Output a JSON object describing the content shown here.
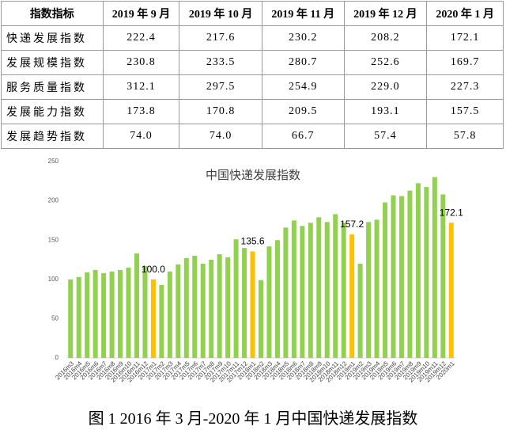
{
  "table": {
    "header": [
      "指数指标",
      "2019 年 9 月",
      "2019 年 10 月",
      "2019 年 11 月",
      "2019 年 12 月",
      "2020 年 1 月"
    ],
    "rows": [
      [
        "快递发展指数",
        "222.4",
        "217.6",
        "230.2",
        "208.2",
        "172.1"
      ],
      [
        "发展规模指数",
        "230.8",
        "233.5",
        "280.7",
        "252.6",
        "169.7"
      ],
      [
        "服务质量指数",
        "312.1",
        "297.5",
        "254.9",
        "229.0",
        "227.3"
      ],
      [
        "发展能力指数",
        "173.8",
        "170.8",
        "209.5",
        "193.1",
        "157.5"
      ],
      [
        "发展趋势指数",
        "74.0",
        "74.0",
        "66.7",
        "57.4",
        "57.8"
      ]
    ]
  },
  "chart_data": {
    "type": "bar",
    "title": "中国快递发展指数",
    "categories": [
      "2016m3",
      "2016m4",
      "2016m5",
      "2016m6",
      "2016m7",
      "2016m8",
      "2016m9",
      "2016m10",
      "2016m11",
      "2016m12",
      "2017m1",
      "2017m2",
      "2017m3",
      "2017m4",
      "2017m5",
      "2017m6",
      "2017m7",
      "2017m8",
      "2017m9",
      "2017m10",
      "2017m11",
      "2017m12",
      "2018m1",
      "2018m2",
      "2018m3",
      "2018m4",
      "2018m5",
      "2018m6",
      "2018m7",
      "2018m8",
      "2018m9",
      "2018m10",
      "2018m11",
      "2018m12",
      "2019m1",
      "2019m2",
      "2019m3",
      "2019m4",
      "2019m5",
      "2019m6",
      "2019m7",
      "2019m8",
      "2019m9",
      "2019m10",
      "2019m11",
      "2019m12",
      "2020m1"
    ],
    "values": [
      100,
      103,
      109,
      112,
      108,
      110,
      112,
      115,
      133,
      117,
      100.0,
      93,
      110,
      119,
      127,
      130,
      120,
      125,
      132,
      128,
      151,
      140,
      135.6,
      99,
      142,
      150,
      166,
      175,
      168,
      172,
      179,
      173,
      183,
      172,
      157.2,
      120,
      173,
      176,
      198,
      207,
      206,
      213,
      222.4,
      217.6,
      230.2,
      208.2,
      172.1
    ],
    "value_labels": [
      null,
      null,
      null,
      null,
      null,
      null,
      null,
      null,
      null,
      null,
      "100.0",
      null,
      null,
      null,
      null,
      null,
      null,
      null,
      null,
      null,
      null,
      null,
      "135.6",
      null,
      null,
      null,
      null,
      null,
      null,
      null,
      null,
      null,
      null,
      null,
      "157.2",
      null,
      null,
      null,
      null,
      null,
      null,
      null,
      null,
      null,
      null,
      null,
      "172.1"
    ],
    "colors": [
      "#92d050",
      "#92d050",
      "#92d050",
      "#92d050",
      "#92d050",
      "#92d050",
      "#92d050",
      "#92d050",
      "#92d050",
      "#92d050",
      "#ffc000",
      "#92d050",
      "#92d050",
      "#92d050",
      "#92d050",
      "#92d050",
      "#92d050",
      "#92d050",
      "#92d050",
      "#92d050",
      "#92d050",
      "#92d050",
      "#ffc000",
      "#92d050",
      "#92d050",
      "#92d050",
      "#92d050",
      "#92d050",
      "#92d050",
      "#92d050",
      "#92d050",
      "#92d050",
      "#92d050",
      "#92d050",
      "#ffc000",
      "#92d050",
      "#92d050",
      "#92d050",
      "#92d050",
      "#92d050",
      "#92d050",
      "#92d050",
      "#92d050",
      "#92d050",
      "#92d050",
      "#92d050",
      "#ffc000"
    ],
    "ylim": [
      0,
      250
    ],
    "yticks": [
      0,
      50,
      100,
      150,
      200,
      250
    ],
    "grid": false
  },
  "caption": "图 1 2016 年 3 月-2020 年 1 月中国快递发展指数"
}
